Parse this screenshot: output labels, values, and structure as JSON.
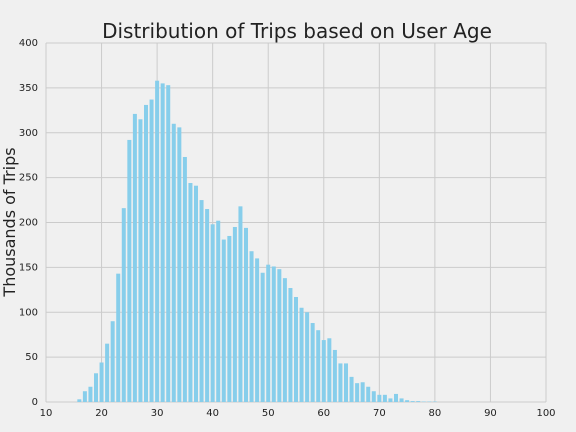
{
  "chart_data": {
    "type": "bar",
    "title": "Distribution of Trips based on User Age",
    "xlabel": "",
    "ylabel": "Thousands of Trips",
    "xlim": [
      10,
      100
    ],
    "ylim": [
      0,
      400
    ],
    "xticks": [
      "10",
      "20",
      "30",
      "40",
      "50",
      "60",
      "70",
      "80",
      "90",
      "100"
    ],
    "yticks": [
      "0",
      "50",
      "100",
      "150",
      "200",
      "250",
      "300",
      "350",
      "400"
    ],
    "grid": true,
    "bar_color": "#87ceeb",
    "background_color": "#f0f0f0",
    "series": [
      {
        "x": [
          16,
          17,
          18,
          19,
          20,
          21,
          22,
          23,
          24,
          25,
          26,
          27,
          28,
          29,
          30,
          31,
          32,
          33,
          34,
          35,
          36,
          37,
          38,
          39,
          40,
          41,
          42,
          43,
          44,
          45,
          46,
          47,
          48,
          49,
          50,
          51,
          52,
          53,
          54,
          55,
          56,
          57,
          58,
          59,
          60,
          61,
          62,
          63,
          64,
          65,
          66,
          67,
          68,
          69,
          70,
          71,
          72,
          73,
          74,
          75,
          76,
          77,
          78,
          79,
          80
        ],
        "values": [
          3,
          12,
          17,
          32,
          44,
          65,
          90,
          143,
          216,
          292,
          321,
          315,
          331,
          337,
          358,
          355,
          353,
          310,
          306,
          273,
          244,
          241,
          225,
          215,
          198,
          202,
          181,
          185,
          195,
          218,
          194,
          168,
          160,
          144,
          153,
          151,
          148,
          138,
          127,
          117,
          105,
          100,
          88,
          80,
          69,
          71,
          58,
          43,
          43,
          28,
          21,
          22,
          17,
          12,
          8,
          8,
          4,
          9,
          4,
          2,
          1,
          1,
          0.5,
          0.5,
          0.5
        ]
      }
    ]
  }
}
